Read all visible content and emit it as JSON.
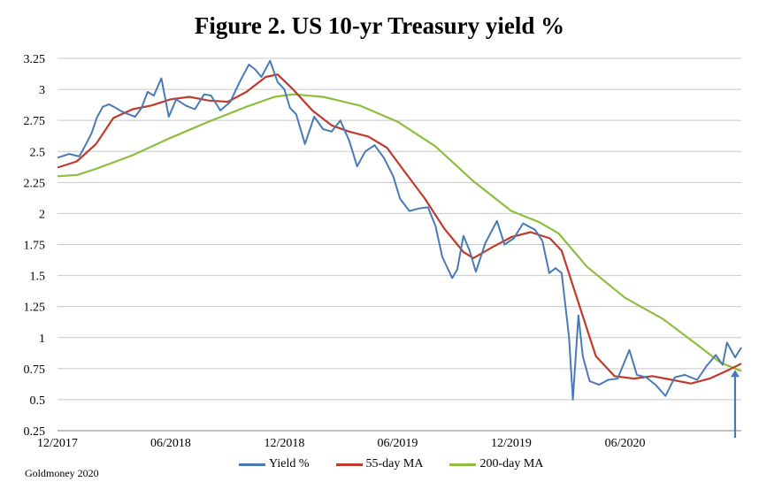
{
  "chart_data": {
    "type": "line",
    "title": "Figure 2. US 10-yr Treasury yield %",
    "xlabel": "",
    "ylabel": "",
    "ylim": [
      0.25,
      3.25
    ],
    "y_ticks": [
      "3.25",
      "3",
      "2.75",
      "2.5",
      "2.25",
      "2",
      "1.75",
      "1.5",
      "1.25",
      "1",
      "0.75",
      "0.5",
      "0.25"
    ],
    "x_ticks": [
      "12/2017",
      "06/2018",
      "12/2018",
      "06/2019",
      "12/2019",
      "06/2020"
    ],
    "grid": "horizontal",
    "legend_position": "bottom",
    "series": [
      {
        "name": "Yield %",
        "color": "#4a7ab5",
        "points": [
          [
            "2017-12-01",
            2.45
          ],
          [
            "2017-12-20",
            2.48
          ],
          [
            "2018-01-05",
            2.46
          ],
          [
            "2018-01-15",
            2.55
          ],
          [
            "2018-01-25",
            2.65
          ],
          [
            "2018-02-02",
            2.77
          ],
          [
            "2018-02-12",
            2.86
          ],
          [
            "2018-02-22",
            2.88
          ],
          [
            "2018-03-05",
            2.85
          ],
          [
            "2018-03-15",
            2.82
          ],
          [
            "2018-03-25",
            2.8
          ],
          [
            "2018-04-05",
            2.78
          ],
          [
            "2018-04-15",
            2.85
          ],
          [
            "2018-04-25",
            2.98
          ],
          [
            "2018-05-05",
            2.95
          ],
          [
            "2018-05-17",
            3.09
          ],
          [
            "2018-05-29",
            2.78
          ],
          [
            "2018-06-10",
            2.92
          ],
          [
            "2018-06-25",
            2.87
          ],
          [
            "2018-07-10",
            2.84
          ],
          [
            "2018-07-25",
            2.96
          ],
          [
            "2018-08-05",
            2.95
          ],
          [
            "2018-08-20",
            2.83
          ],
          [
            "2018-09-05",
            2.9
          ],
          [
            "2018-09-20",
            3.06
          ],
          [
            "2018-10-05",
            3.2
          ],
          [
            "2018-10-15",
            3.16
          ],
          [
            "2018-10-25",
            3.1
          ],
          [
            "2018-11-08",
            3.23
          ],
          [
            "2018-11-20",
            3.06
          ],
          [
            "2018-12-01",
            3.0
          ],
          [
            "2018-12-10",
            2.85
          ],
          [
            "2018-12-20",
            2.8
          ],
          [
            "2019-01-03",
            2.56
          ],
          [
            "2019-01-18",
            2.78
          ],
          [
            "2019-02-01",
            2.68
          ],
          [
            "2019-02-15",
            2.66
          ],
          [
            "2019-03-01",
            2.75
          ],
          [
            "2019-03-15",
            2.59
          ],
          [
            "2019-03-28",
            2.38
          ],
          [
            "2019-04-10",
            2.5
          ],
          [
            "2019-04-25",
            2.55
          ],
          [
            "2019-05-10",
            2.45
          ],
          [
            "2019-05-25",
            2.3
          ],
          [
            "2019-06-05",
            2.12
          ],
          [
            "2019-06-20",
            2.02
          ],
          [
            "2019-07-05",
            2.04
          ],
          [
            "2019-07-20",
            2.05
          ],
          [
            "2019-08-01",
            1.9
          ],
          [
            "2019-08-12",
            1.65
          ],
          [
            "2019-08-28",
            1.48
          ],
          [
            "2019-09-05",
            1.55
          ],
          [
            "2019-09-15",
            1.82
          ],
          [
            "2019-09-25",
            1.7
          ],
          [
            "2019-10-05",
            1.53
          ],
          [
            "2019-10-20",
            1.76
          ],
          [
            "2019-11-08",
            1.94
          ],
          [
            "2019-11-20",
            1.75
          ],
          [
            "2019-12-05",
            1.8
          ],
          [
            "2019-12-20",
            1.92
          ],
          [
            "2020-01-08",
            1.87
          ],
          [
            "2020-01-20",
            1.78
          ],
          [
            "2020-01-31",
            1.52
          ],
          [
            "2020-02-10",
            1.56
          ],
          [
            "2020-02-20",
            1.52
          ],
          [
            "2020-03-03",
            1.0
          ],
          [
            "2020-03-09",
            0.5
          ],
          [
            "2020-03-18",
            1.18
          ],
          [
            "2020-03-25",
            0.85
          ],
          [
            "2020-04-05",
            0.65
          ],
          [
            "2020-04-20",
            0.62
          ],
          [
            "2020-05-05",
            0.66
          ],
          [
            "2020-05-20",
            0.67
          ],
          [
            "2020-06-08",
            0.9
          ],
          [
            "2020-06-20",
            0.7
          ],
          [
            "2020-07-05",
            0.68
          ],
          [
            "2020-07-20",
            0.62
          ],
          [
            "2020-08-05",
            0.53
          ],
          [
            "2020-08-20",
            0.68
          ],
          [
            "2020-09-05",
            0.7
          ],
          [
            "2020-09-25",
            0.66
          ],
          [
            "2020-10-10",
            0.77
          ],
          [
            "2020-10-25",
            0.86
          ],
          [
            "2020-11-05",
            0.78
          ],
          [
            "2020-11-12",
            0.96
          ],
          [
            "2020-11-25",
            0.84
          ],
          [
            "2020-12-05",
            0.92
          ]
        ]
      },
      {
        "name": "55-day MA",
        "color": "#c0392b",
        "points": [
          [
            "2017-12-01",
            2.37
          ],
          [
            "2018-01-01",
            2.42
          ],
          [
            "2018-02-01",
            2.56
          ],
          [
            "2018-03-01",
            2.77
          ],
          [
            "2018-04-01",
            2.84
          ],
          [
            "2018-05-01",
            2.87
          ],
          [
            "2018-06-01",
            2.92
          ],
          [
            "2018-07-01",
            2.94
          ],
          [
            "2018-08-01",
            2.91
          ],
          [
            "2018-09-01",
            2.9
          ],
          [
            "2018-10-01",
            2.98
          ],
          [
            "2018-11-01",
            3.1
          ],
          [
            "2018-11-20",
            3.12
          ],
          [
            "2018-12-15",
            3.0
          ],
          [
            "2019-01-15",
            2.83
          ],
          [
            "2019-02-15",
            2.71
          ],
          [
            "2019-03-15",
            2.66
          ],
          [
            "2019-04-15",
            2.62
          ],
          [
            "2019-05-15",
            2.53
          ],
          [
            "2019-06-15",
            2.32
          ],
          [
            "2019-07-15",
            2.12
          ],
          [
            "2019-08-15",
            1.88
          ],
          [
            "2019-09-15",
            1.69
          ],
          [
            "2019-10-01",
            1.64
          ],
          [
            "2019-11-01",
            1.73
          ],
          [
            "2019-12-01",
            1.81
          ],
          [
            "2020-01-01",
            1.85
          ],
          [
            "2020-02-01",
            1.8
          ],
          [
            "2020-02-20",
            1.7
          ],
          [
            "2020-03-20",
            1.25
          ],
          [
            "2020-04-15",
            0.85
          ],
          [
            "2020-05-15",
            0.69
          ],
          [
            "2020-06-15",
            0.67
          ],
          [
            "2020-07-15",
            0.69
          ],
          [
            "2020-08-15",
            0.66
          ],
          [
            "2020-09-15",
            0.63
          ],
          [
            "2020-10-15",
            0.67
          ],
          [
            "2020-11-15",
            0.74
          ],
          [
            "2020-12-05",
            0.79
          ]
        ]
      },
      {
        "name": "200-day MA",
        "color": "#8dbf3f",
        "points": [
          [
            "2017-12-01",
            2.3
          ],
          [
            "2018-01-01",
            2.31
          ],
          [
            "2018-02-01",
            2.36
          ],
          [
            "2018-04-01",
            2.47
          ],
          [
            "2018-06-01",
            2.61
          ],
          [
            "2018-08-01",
            2.74
          ],
          [
            "2018-10-01",
            2.86
          ],
          [
            "2018-11-15",
            2.94
          ],
          [
            "2018-12-15",
            2.96
          ],
          [
            "2019-02-01",
            2.94
          ],
          [
            "2019-04-01",
            2.87
          ],
          [
            "2019-06-01",
            2.74
          ],
          [
            "2019-08-01",
            2.54
          ],
          [
            "2019-10-01",
            2.26
          ],
          [
            "2019-12-01",
            2.02
          ],
          [
            "2020-01-15",
            1.93
          ],
          [
            "2020-02-15",
            1.84
          ],
          [
            "2020-04-01",
            1.57
          ],
          [
            "2020-06-01",
            1.32
          ],
          [
            "2020-08-01",
            1.15
          ],
          [
            "2020-10-01",
            0.92
          ],
          [
            "2020-11-01",
            0.8
          ],
          [
            "2020-12-05",
            0.73
          ]
        ]
      }
    ],
    "annotations": [
      {
        "type": "arrow",
        "description": "upward arrow at end of series",
        "x": "2020-11-25",
        "y_from": 0.25,
        "y_to": 0.74
      }
    ],
    "source_note": "Goldmoney 2020"
  }
}
